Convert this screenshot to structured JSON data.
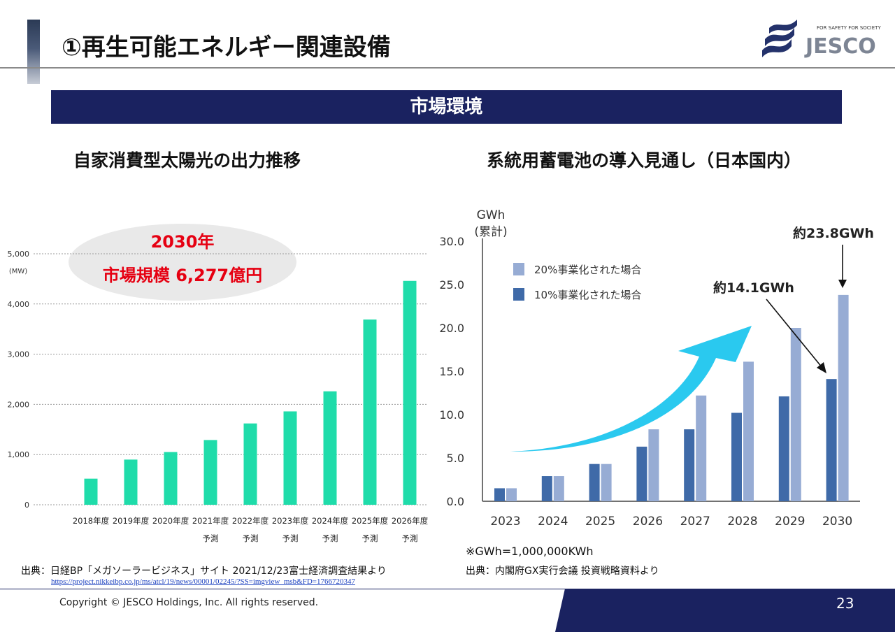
{
  "header": {
    "title": "①再生可能エネルギー関連設備",
    "logo_tagline": "FOR SAFETY FOR SOCIETY",
    "logo_text": "JESCO"
  },
  "banner": {
    "label": "市場環境"
  },
  "left": {
    "title": "自家消費型太陽光の出力推移",
    "callout_line1": "2030年",
    "callout_line2": "市場規模  6,277億円",
    "source": "出典：日経BP「メガソーラービジネス」サイト  2021/12/23富士経済調査結果より",
    "url": "https://project.nikkeibp.co.jp/ms/atcl/19/news/00001/02245/?SS=imgview_msb&FD=1766720347"
  },
  "right": {
    "title": "系統用蓄電池の導入見通し（日本国内）",
    "note": "※GWh=1,000,000KWh",
    "source": "出典：内閣府GX実行会議  投資戦略資料より"
  },
  "footer": {
    "copyright": "Copyright © JESCO Holdings, Inc.  All rights reserved.",
    "page": "23"
  },
  "colors": {
    "banner": "#1a2260",
    "left_bar": "#1fdcaa",
    "dark_series": "#3f6aa8",
    "light_series": "#97acd4",
    "arrow": "#1fc6ee",
    "callout_text": "#e60012"
  },
  "chart_data": [
    {
      "type": "bar",
      "title": "自家消費型太陽光の出力推移",
      "ylabel": "(MW)",
      "ylim": [
        0,
        5000
      ],
      "yticks": [
        "0",
        "1,000",
        "2,000",
        "3,000",
        "4,000",
        "5,000"
      ],
      "ytick_values": [
        0,
        1000,
        2000,
        3000,
        4000,
        5000
      ],
      "grid": true,
      "categories": [
        "2018年度",
        "2019年度",
        "2020年度",
        "2021年度\n予測",
        "2022年度\n予測",
        "2023年度\n予測",
        "2024年度\n予測",
        "2025年度\n予測",
        "2026年度\n予測"
      ],
      "category_lines": [
        [
          "2018年度"
        ],
        [
          "2019年度"
        ],
        [
          "2020年度"
        ],
        [
          "2021年度",
          "予測"
        ],
        [
          "2022年度",
          "予測"
        ],
        [
          "2023年度",
          "予測"
        ],
        [
          "2024年度",
          "予測"
        ],
        [
          "2025年度",
          "予測"
        ],
        [
          "2026年度",
          "予測"
        ]
      ],
      "values": [
        520,
        900,
        1050,
        1290,
        1620,
        1860,
        2260,
        3690,
        4460
      ]
    },
    {
      "type": "bar",
      "title": "系統用蓄電池の導入見通し（日本国内）",
      "ylabel": "GWh (累計)",
      "ylabel_lines": [
        "GWh",
        "(累計)"
      ],
      "ylim": [
        0,
        30
      ],
      "yticks": [
        "0.0",
        "5.0",
        "10.0",
        "15.0",
        "20.0",
        "25.0",
        "30.0"
      ],
      "ytick_values": [
        0,
        5,
        10,
        15,
        20,
        25,
        30
      ],
      "grid": false,
      "legend_position": "top-left",
      "categories": [
        "2023",
        "2024",
        "2025",
        "2026",
        "2027",
        "2028",
        "2029",
        "2030"
      ],
      "series": [
        {
          "name": "10%事業化された場合",
          "values": [
            1.5,
            2.9,
            4.3,
            6.3,
            8.3,
            10.2,
            12.1,
            14.1
          ]
        },
        {
          "name": "20%事業化された場合",
          "values": [
            1.5,
            2.9,
            4.3,
            8.3,
            12.2,
            16.1,
            20.0,
            23.8
          ]
        }
      ],
      "annotations": [
        "約14.1GWh",
        "約23.8GWh"
      ]
    }
  ]
}
